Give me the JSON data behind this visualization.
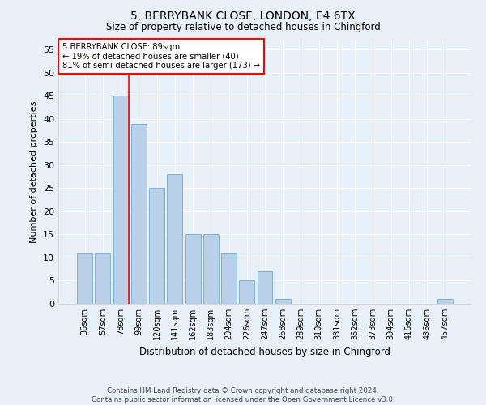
{
  "title": "5, BERRYBANK CLOSE, LONDON, E4 6TX",
  "subtitle": "Size of property relative to detached houses in Chingford",
  "xlabel": "Distribution of detached houses by size in Chingford",
  "ylabel": "Number of detached properties",
  "categories": [
    "36sqm",
    "57sqm",
    "78sqm",
    "99sqm",
    "120sqm",
    "141sqm",
    "162sqm",
    "183sqm",
    "204sqm",
    "226sqm",
    "247sqm",
    "268sqm",
    "289sqm",
    "310sqm",
    "331sqm",
    "352sqm",
    "373sqm",
    "394sqm",
    "415sqm",
    "436sqm",
    "457sqm"
  ],
  "values": [
    11,
    11,
    45,
    39,
    25,
    28,
    15,
    15,
    11,
    5,
    7,
    1,
    0,
    0,
    0,
    0,
    0,
    0,
    0,
    0,
    1
  ],
  "bar_color": "#b8d0e8",
  "bar_edge_color": "#6aaad4",
  "background_color": "#e8f0f8",
  "grid_color": "#ffffff",
  "red_line_index": 2,
  "annotation_line1": "5 BERRYBANK CLOSE: 89sqm",
  "annotation_line2": "← 19% of detached houses are smaller (40)",
  "annotation_line3": "81% of semi-detached houses are larger (173) →",
  "footnote1": "Contains HM Land Registry data © Crown copyright and database right 2024.",
  "footnote2": "Contains public sector information licensed under the Open Government Licence v3.0.",
  "ylim": [
    0,
    57
  ],
  "yticks": [
    0,
    5,
    10,
    15,
    20,
    25,
    30,
    35,
    40,
    45,
    50,
    55
  ]
}
